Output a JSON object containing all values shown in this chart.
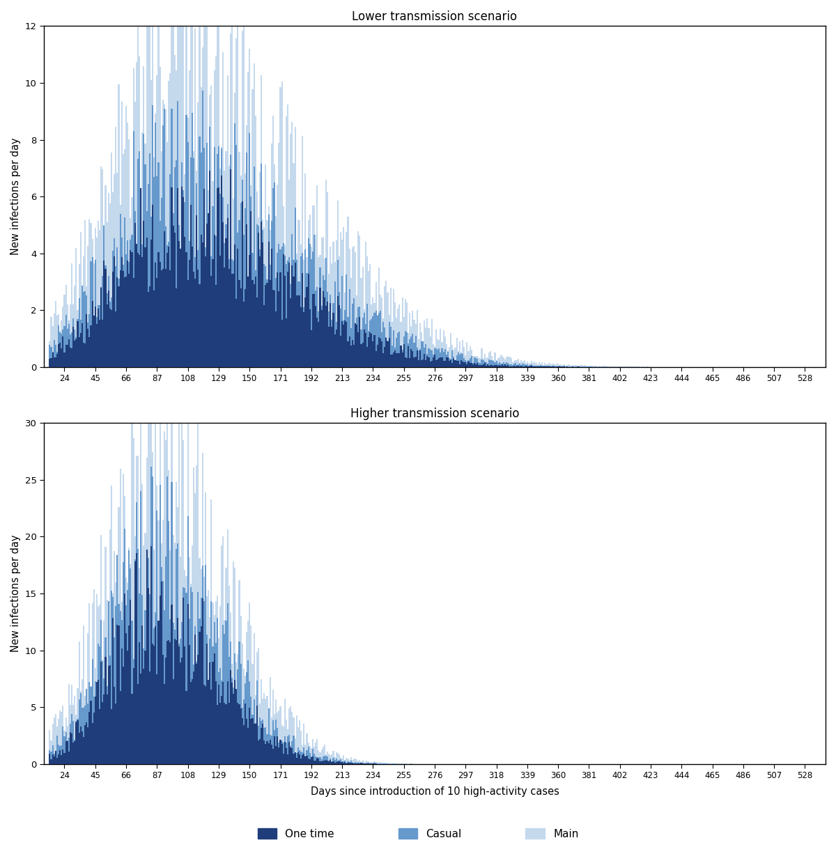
{
  "title_upper": "Lower transmission scenario",
  "title_lower": "Higher transmission scenario",
  "xlabel": "Days since introduction of 10 high-activity cases",
  "ylabel": "New infections per day",
  "ylim_upper": [
    0,
    12
  ],
  "ylim_lower": [
    0,
    30
  ],
  "yticks_upper": [
    0,
    2,
    4,
    6,
    8,
    10,
    12
  ],
  "yticks_lower": [
    0,
    5,
    10,
    15,
    20,
    25,
    30
  ],
  "xticks": [
    24,
    45,
    66,
    87,
    108,
    129,
    150,
    171,
    192,
    213,
    234,
    255,
    276,
    297,
    318,
    339,
    360,
    381,
    402,
    423,
    444,
    465,
    486,
    507,
    528
  ],
  "colors": {
    "one_time": "#1f3d7a",
    "casual": "#6699cc",
    "main": "#c5d9ed"
  },
  "legend_labels": [
    "One time",
    "Casual",
    "Main"
  ],
  "x_start": 14,
  "x_end": 530,
  "peak_day_upper": 95,
  "peak_day_lower": 85,
  "peak_val_upper_main": 10.8,
  "peak_val_upper_casual": 7.2,
  "peak_val_upper_onetime": 5.5,
  "peak_val_lower_main": 27.5,
  "peak_val_lower_casual": 18.5,
  "peak_val_lower_onetime": 14.0,
  "background_color": "#ffffff"
}
